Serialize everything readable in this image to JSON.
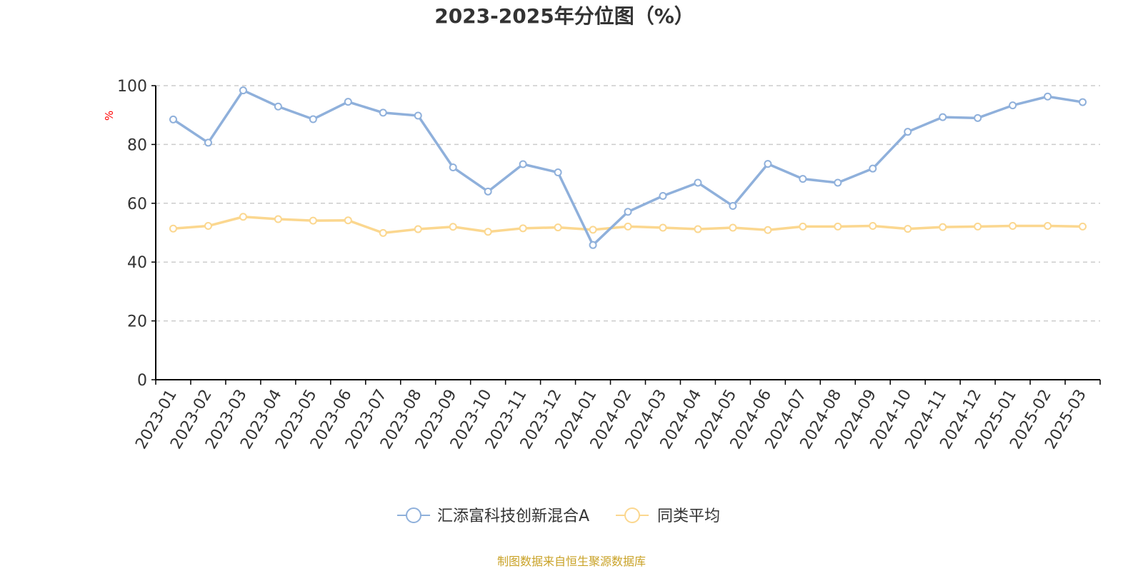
{
  "chart_data": {
    "type": "line",
    "title": "2023-2025年分位图（%）",
    "ylabel": "%",
    "ylim": [
      0,
      100
    ],
    "yticks": [
      0,
      20,
      40,
      60,
      80,
      100
    ],
    "grid": true,
    "legend_position": "bottom",
    "categories": [
      "2023-01",
      "2023-02",
      "2023-03",
      "2023-04",
      "2023-05",
      "2023-06",
      "2023-07",
      "2023-08",
      "2023-09",
      "2023-10",
      "2023-11",
      "2023-12",
      "2024-01",
      "2024-02",
      "2024-03",
      "2024-04",
      "2024-05",
      "2024-06",
      "2024-07",
      "2024-08",
      "2024-09",
      "2024-10",
      "2024-11",
      "2024-12",
      "2025-01",
      "2025-02",
      "2025-03"
    ],
    "series": [
      {
        "name": "汇添富科技创新混合A",
        "color": "#8fb0db",
        "values": [
          88.5,
          80.6,
          98.4,
          92.9,
          88.6,
          94.5,
          90.8,
          89.8,
          72.2,
          64.0,
          73.3,
          70.5,
          45.8,
          57.1,
          62.5,
          67.0,
          59.1,
          73.4,
          68.3,
          67.0,
          71.8,
          84.3,
          89.3,
          89.0,
          93.3,
          96.3,
          94.4
        ]
      },
      {
        "name": "同类平均",
        "color": "#fbd78f",
        "values": [
          51.4,
          52.3,
          55.4,
          54.6,
          54.1,
          54.2,
          49.9,
          51.2,
          52.0,
          50.3,
          51.5,
          51.8,
          51.0,
          52.1,
          51.7,
          51.2,
          51.7,
          50.9,
          52.1,
          52.1,
          52.3,
          51.3,
          51.9,
          52.1,
          52.3,
          52.3,
          52.1
        ]
      }
    ],
    "source": "制图数据来自恒生聚源数据库",
    "colors": {
      "axis": "#000000",
      "grid": "#cccccc",
      "unit_label": "#ff0000",
      "source_text": "#c9a227",
      "text": "#333333"
    }
  }
}
